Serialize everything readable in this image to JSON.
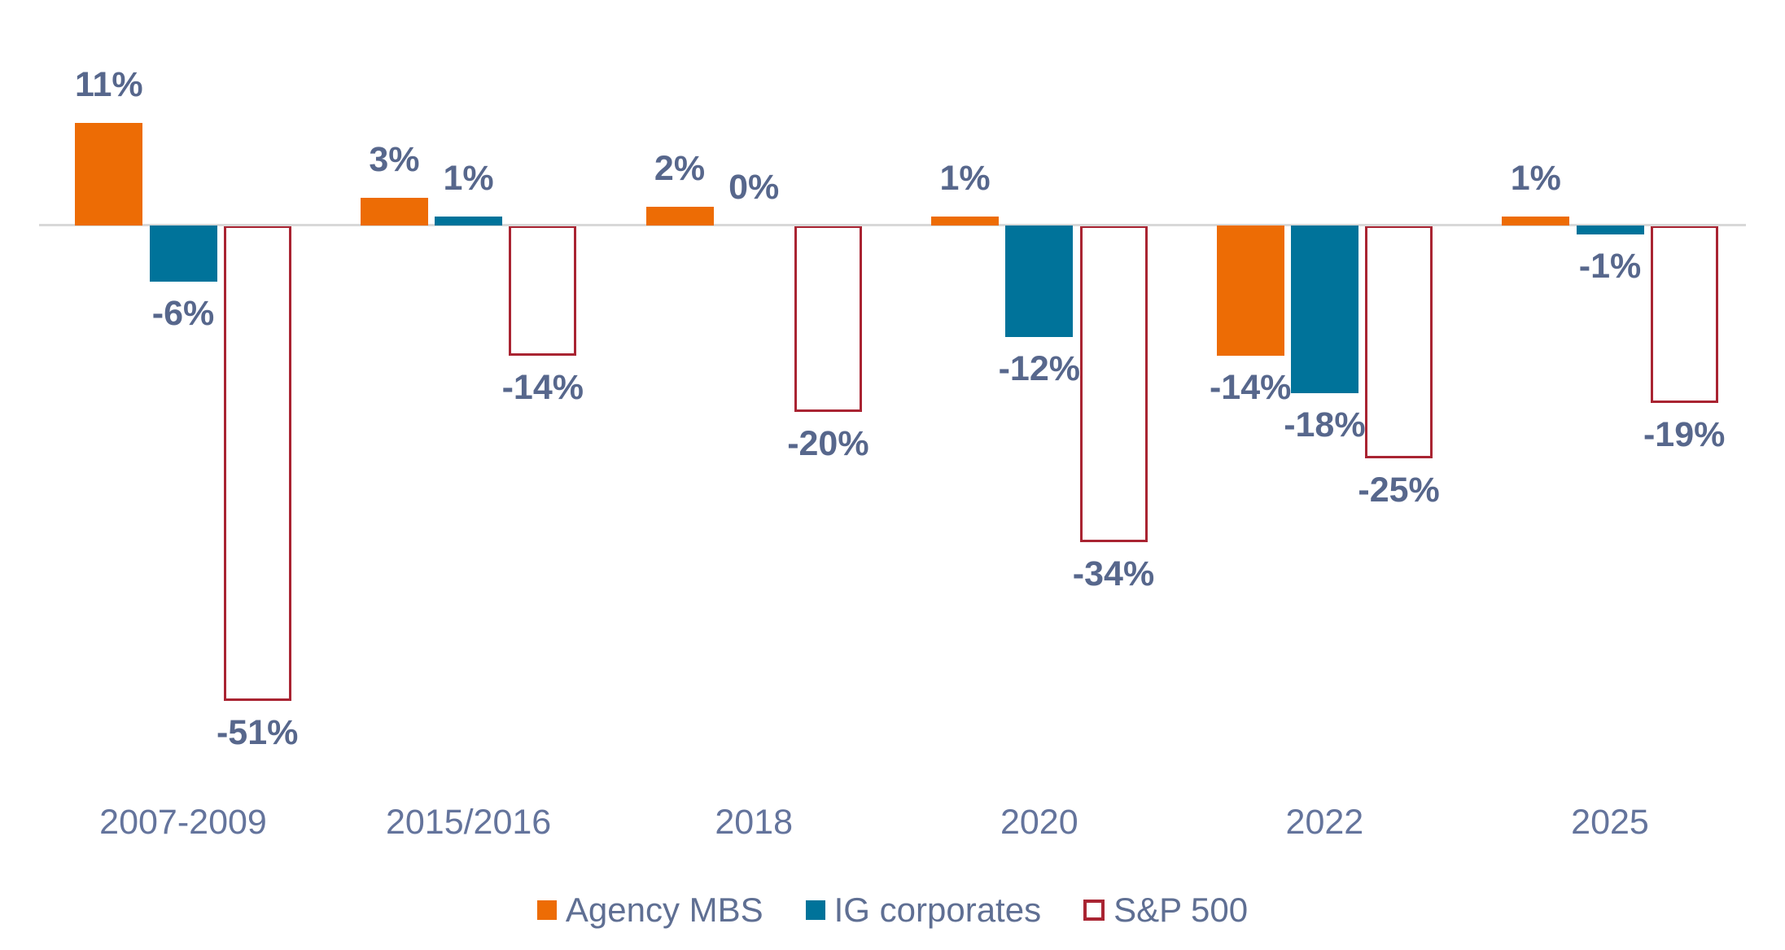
{
  "chart_data": {
    "type": "bar",
    "categories": [
      "2007-2009",
      "2015/2016",
      "2018",
      "2020",
      "2022",
      "2025"
    ],
    "series": [
      {
        "name": "Agency MBS",
        "color": "#ED6C05",
        "style": "filled",
        "values": [
          11,
          3,
          2,
          1,
          -14,
          1
        ]
      },
      {
        "name": "IG corporates",
        "color": "#00739A",
        "style": "filled",
        "values": [
          -6,
          1,
          0,
          -12,
          -18,
          -1
        ]
      },
      {
        "name": "S&P 500",
        "color": "#A92432",
        "style": "outlined",
        "values": [
          -51,
          -14,
          -20,
          -34,
          -25,
          -19
        ]
      }
    ],
    "value_labels": [
      [
        "11%",
        "3%",
        "2%",
        "1%",
        "-14%",
        "1%"
      ],
      [
        "-6%",
        "1%",
        "0%",
        "-12%",
        "-18%",
        "-1%"
      ],
      [
        "-51%",
        "-14%",
        "-20%",
        "-34%",
        "-25%",
        "-19%"
      ]
    ],
    "value_label_suffix": "%",
    "axis": {
      "baseline_value": 0,
      "gridlines": false
    },
    "legend_position": "bottom-center"
  },
  "styles": {
    "value_label_color": "#57678C",
    "category_label_color": "#64749C",
    "legend_text_color": "#5F6F93",
    "axis_line_color": "#D8D8D8",
    "background": "#FFFFFF"
  }
}
